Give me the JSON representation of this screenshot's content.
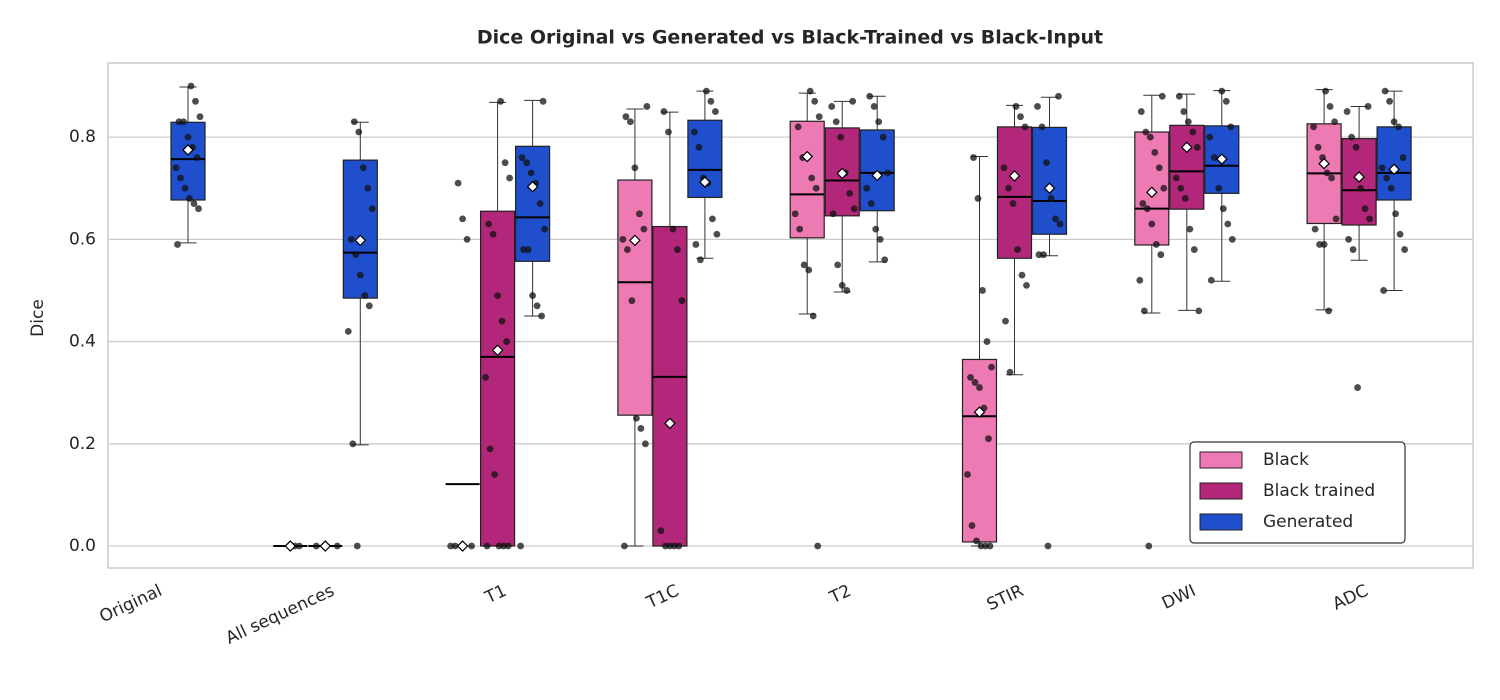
{
  "chart_data": {
    "type": "box",
    "title": "Dice Original vs Generated vs Black-Trained vs Black-Input",
    "y_label": "Dice",
    "categories": [
      "Original",
      "All sequences",
      "T1",
      "T1C",
      "T2",
      "STIR",
      "DWI",
      "ADC"
    ],
    "ylim": [
      -0.043,
      0.945
    ],
    "yticks": [
      {
        "value": 0,
        "label": "0.0"
      },
      {
        "value": 0.2,
        "label": "0.2"
      },
      {
        "value": 0.4,
        "label": "0.4"
      },
      {
        "value": 0.6,
        "label": "0.6"
      },
      {
        "value": 0.8,
        "label": "0.8"
      }
    ],
    "grid": true,
    "legend": "lower right",
    "series": [
      {
        "name": "Black",
        "color": "#ee7ab4",
        "q1": [
          null,
          0,
          0,
          0.256,
          0.603,
          0.008,
          0.589,
          0.631
        ],
        "median": [
          null,
          0,
          0.121,
          0.516,
          0.688,
          0.254,
          0.66,
          0.729
        ],
        "q3": [
          null,
          0,
          0,
          0.716,
          0.831,
          0.365,
          0.81,
          0.826
        ],
        "whislo": [
          null,
          0,
          0,
          0,
          0.454,
          0,
          0.456,
          0.462
        ],
        "whishi": [
          null,
          0,
          0,
          0.855,
          0.886,
          0.762,
          0.882,
          0.893
        ],
        "mean": [
          null,
          0,
          0,
          0.598,
          0.762,
          0.262,
          0.692,
          0.748
        ],
        "points": [
          null,
          [
            0,
            0
          ],
          [
            0.71,
            0.64,
            0.6,
            0,
            0,
            0
          ],
          [
            0.86,
            0.84,
            0.83,
            0.74,
            0.65,
            0.62,
            0.6,
            0.58,
            0.48,
            0.25,
            0.23,
            0.2,
            0
          ],
          [
            0.89,
            0.87,
            0.84,
            0.82,
            0.76,
            0.76,
            0.72,
            0.7,
            0.65,
            0.62,
            0.55,
            0.54,
            0.45,
            0
          ],
          [
            0.76,
            0.68,
            0.5,
            0.4,
            0.35,
            0.33,
            0.32,
            0.31,
            0.27,
            0.21,
            0.14,
            0.04,
            0.01,
            0,
            0,
            0
          ],
          [
            0.88,
            0.85,
            0.81,
            0.8,
            0.77,
            0.74,
            0.7,
            0.67,
            0.66,
            0.63,
            0.59,
            0.57,
            0.52,
            0.46,
            0
          ],
          [
            0.89,
            0.86,
            0.83,
            0.82,
            0.78,
            0.76,
            0.73,
            0.72,
            0.64,
            0.62,
            0.59,
            0.59,
            0.46
          ]
        ]
      },
      {
        "name": "Black trained",
        "color": "#b3277a",
        "q1": [
          null,
          0,
          0,
          0,
          0.646,
          0.563,
          0.659,
          0.628
        ],
        "median": [
          null,
          0,
          0.37,
          0.331,
          0.715,
          0.683,
          0.733,
          0.696
        ],
        "q3": [
          null,
          0,
          0.655,
          0.625,
          0.818,
          0.82,
          0.823,
          0.797
        ],
        "whislo": [
          null,
          0,
          0,
          0,
          0.497,
          0.335,
          0.461,
          0.559
        ],
        "whishi": [
          null,
          0,
          0.868,
          0.849,
          0.87,
          0.862,
          0.884,
          0.86
        ],
        "mean": [
          null,
          0,
          0.383,
          0.24,
          0.729,
          0.724,
          0.78,
          0.722
        ],
        "points": [
          null,
          [
            0,
            0
          ],
          [
            0.87,
            0.75,
            0.72,
            0.63,
            0.61,
            0.49,
            0.44,
            0.4,
            0.33,
            0.19,
            0.14,
            0,
            0,
            0,
            0
          ],
          [
            0.85,
            0.81,
            0.62,
            0.58,
            0.48,
            0.03,
            0,
            0,
            0,
            0
          ],
          [
            0.87,
            0.86,
            0.83,
            0.8,
            0.73,
            0.69,
            0.66,
            0.65,
            0.55,
            0.51,
            0.5
          ],
          [
            0.86,
            0.84,
            0.82,
            0.74,
            0.7,
            0.67,
            0.58,
            0.53,
            0.51,
            0.44,
            0.34
          ],
          [
            0.88,
            0.85,
            0.83,
            0.81,
            0.78,
            0.72,
            0.7,
            0.68,
            0.62,
            0.58,
            0.46
          ],
          [
            0.86,
            0.85,
            0.8,
            0.78,
            0.7,
            0.66,
            0.64,
            0.6,
            0.58,
            0.31
          ]
        ]
      },
      {
        "name": "Generated",
        "color": "#1f4fcc",
        "q1": [
          0.677,
          0.485,
          0.557,
          0.682,
          0.656,
          0.61,
          0.69,
          0.677
        ],
        "median": [
          0.757,
          0.574,
          0.643,
          0.736,
          0.73,
          0.675,
          0.744,
          0.73
        ],
        "q3": [
          0.829,
          0.755,
          0.782,
          0.833,
          0.814,
          0.819,
          0.822,
          0.82
        ],
        "whislo": [
          0.593,
          0.198,
          0.45,
          0.563,
          0.556,
          0.568,
          0.518,
          0.5
        ],
        "whishi": [
          0.898,
          0.829,
          0.872,
          0.89,
          0.88,
          0.878,
          0.891,
          0.89
        ],
        "mean": [
          0.775,
          0.598,
          0.703,
          0.712,
          0.725,
          0.7,
          0.757,
          0.737
        ],
        "points": [
          [
            0.9,
            0.87,
            0.84,
            0.83,
            0.83,
            0.8,
            0.78,
            0.76,
            0.74,
            0.72,
            0.7,
            0.68,
            0.67,
            0.66,
            0.59
          ],
          [
            0.83,
            0.81,
            0.74,
            0.7,
            0.66,
            0.6,
            0.57,
            0.53,
            0.49,
            0.47,
            0.42,
            0.2,
            0
          ],
          [
            0.87,
            0.76,
            0.75,
            0.73,
            0.71,
            0.67,
            0.62,
            0.58,
            0.58,
            0.49,
            0.47,
            0.45,
            0
          ],
          [
            0.89,
            0.87,
            0.85,
            0.81,
            0.78,
            0.72,
            0.71,
            0.64,
            0.61,
            0.59,
            0.56
          ],
          [
            0.88,
            0.86,
            0.83,
            0.8,
            0.73,
            0.7,
            0.67,
            0.62,
            0.6,
            0.56
          ],
          [
            0.88,
            0.86,
            0.82,
            0.75,
            0.68,
            0.64,
            0.63,
            0.57,
            0.57,
            0
          ],
          [
            0.89,
            0.87,
            0.82,
            0.8,
            0.76,
            0.7,
            0.66,
            0.63,
            0.6,
            0.52
          ],
          [
            0.89,
            0.87,
            0.83,
            0.82,
            0.76,
            0.74,
            0.72,
            0.7,
            0.65,
            0.61,
            0.58,
            0.5
          ]
        ]
      }
    ]
  }
}
